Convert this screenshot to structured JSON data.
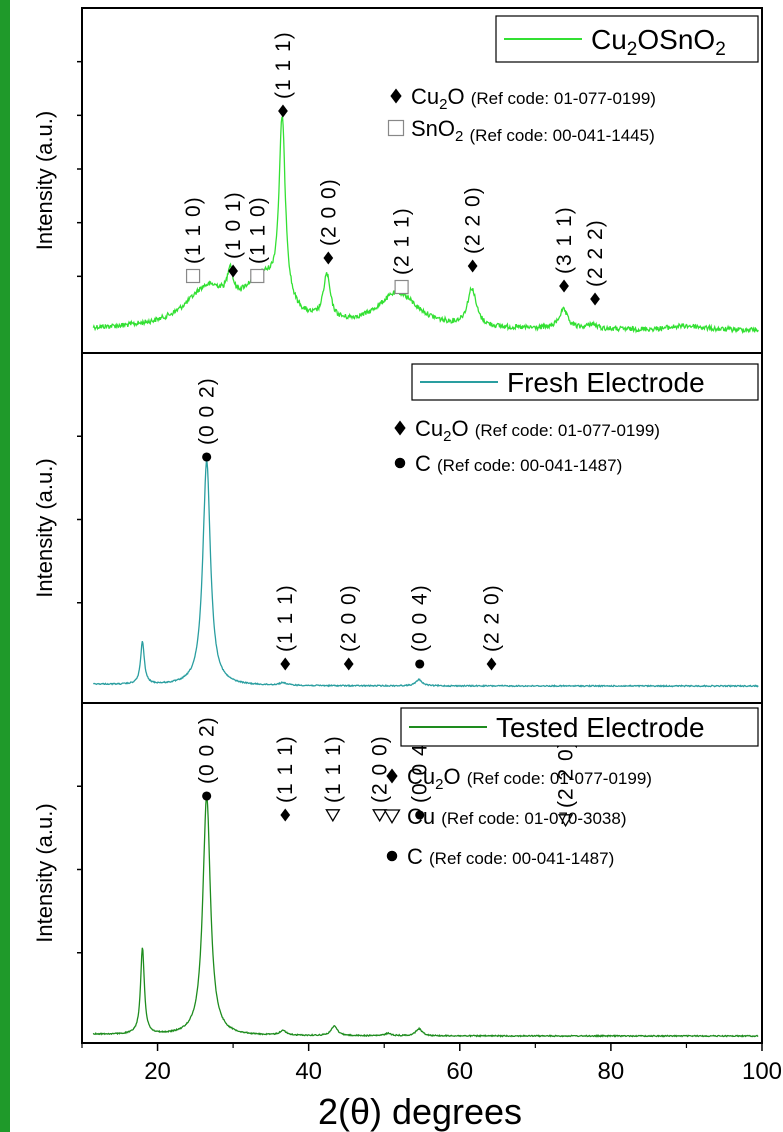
{
  "chart_data": {
    "type": "line",
    "xlabel": "2(θ) degrees",
    "xlim": [
      10,
      100
    ],
    "xticks": [
      20,
      40,
      60,
      80,
      100
    ],
    "ylabel": "Intensity (a.u.)",
    "panels": [
      {
        "legend": {
          "name": "Cu2OSnO2",
          "label_main": "Cu",
          "label_sub": "2",
          "label_rest": "OSnO",
          "label_sub2": "2"
        },
        "color": "#33e033",
        "phases": [
          {
            "symbol": "diamond",
            "name_main": "Cu",
            "name_sub": "2",
            "name_rest": "O",
            "ref": "(Ref code: 01-077-0199)"
          },
          {
            "symbol": "square",
            "name_main": "SnO",
            "name_sub": "2",
            "name_rest": "",
            "ref": "(Ref code: 00-041-1445)"
          }
        ],
        "peaks": [
          {
            "x": 26.6,
            "h": 0.16,
            "w": 3.5
          },
          {
            "x": 29.6,
            "h": 0.12,
            "w": 0.4
          },
          {
            "x": 33.9,
            "h": 0.19,
            "w": 3.0
          },
          {
            "x": 36.5,
            "h": 0.78,
            "w": 0.5
          },
          {
            "x": 42.4,
            "h": 0.19,
            "w": 0.55
          },
          {
            "x": 51.8,
            "h": 0.15,
            "w": 3.2
          },
          {
            "x": 61.6,
            "h": 0.16,
            "w": 0.7
          },
          {
            "x": 73.7,
            "h": 0.08,
            "w": 0.7
          },
          {
            "x": 77.5,
            "h": 0.02,
            "w": 0.7
          }
        ],
        "markers": [
          {
            "x": 24.7,
            "symbol": "square",
            "label": "(1 1 0)"
          },
          {
            "x": 30.0,
            "symbol": "diamond",
            "label": "(1 0 1)"
          },
          {
            "x": 33.2,
            "symbol": "square",
            "label": "(1 1 0)"
          },
          {
            "x": 36.6,
            "symbol": "diamond",
            "label": "(1 1 1)"
          },
          {
            "x": 42.6,
            "symbol": "diamond",
            "label": "(2 0 0)"
          },
          {
            "x": 52.3,
            "symbol": "square",
            "label": "(2 1 1)"
          },
          {
            "x": 61.7,
            "symbol": "diamond",
            "label": "(2 2 0)"
          },
          {
            "x": 73.8,
            "symbol": "diamond",
            "label": "(3 1 1)"
          },
          {
            "x": 77.9,
            "symbol": "diamond",
            "label": "(2 2 2)"
          }
        ]
      },
      {
        "legend": {
          "name": "Fresh Electrode"
        },
        "color": "#2a9ea0",
        "phases": [
          {
            "symbol": "diamond",
            "name_main": "Cu",
            "name_sub": "2",
            "name_rest": "O",
            "ref": "(Ref code: 01-077-0199)"
          },
          {
            "symbol": "circle",
            "name_main": "C",
            "name_sub": "",
            "name_rest": "",
            "ref": "(Ref code: 00-041-1487)"
          }
        ],
        "peaks": [
          {
            "x": 18.0,
            "h": 0.17,
            "w": 0.3
          },
          {
            "x": 26.5,
            "h": 0.9,
            "w": 0.6
          },
          {
            "x": 36.6,
            "h": 0.01,
            "w": 0.6
          },
          {
            "x": 54.6,
            "h": 0.025,
            "w": 0.5
          }
        ],
        "markers": [
          {
            "x": 26.5,
            "symbol": "circle",
            "label": "(0 0 2)"
          },
          {
            "x": 36.9,
            "symbol": "diamond",
            "label": "(1 1 1)"
          },
          {
            "x": 45.3,
            "symbol": "diamond",
            "label": "(2 0 0)"
          },
          {
            "x": 54.7,
            "symbol": "circle",
            "label": "(0 0 4)"
          },
          {
            "x": 64.2,
            "symbol": "diamond",
            "label": "(2 2 0)"
          }
        ]
      },
      {
        "legend": {
          "name": "Tested Electrode"
        },
        "color": "#1e8c1e",
        "phases": [
          {
            "symbol": "diamond",
            "name_main": "Cu",
            "name_sub": "2",
            "name_rest": "O",
            "ref": "(Ref code: 01-077-0199)"
          },
          {
            "symbol": "triangle",
            "name_main": "Cu",
            "name_sub": "",
            "name_rest": "",
            "ref": "(Ref code: 01-070-3038)"
          },
          {
            "symbol": "circle",
            "name_main": "C",
            "name_sub": "",
            "name_rest": "",
            "ref": "(Ref code: 00-041-1487)"
          }
        ],
        "peaks": [
          {
            "x": 18.0,
            "h": 0.36,
            "w": 0.3
          },
          {
            "x": 26.5,
            "h": 1.0,
            "w": 0.6
          },
          {
            "x": 36.6,
            "h": 0.02,
            "w": 0.5
          },
          {
            "x": 43.4,
            "h": 0.04,
            "w": 0.5
          },
          {
            "x": 50.5,
            "h": 0.01,
            "w": 0.5
          },
          {
            "x": 54.6,
            "h": 0.03,
            "w": 0.5
          }
        ],
        "markers": [
          {
            "x": 36.9,
            "symbol": "diamond",
            "label": "(1 1 1)"
          },
          {
            "x": 43.2,
            "symbol": "triangle",
            "label": "(1 1 1)"
          },
          {
            "x": 49.4,
            "symbol": "triangle",
            "label": "(2 0 0)"
          },
          {
            "x": 54.7,
            "symbol": "circle",
            "label": "(0 0 4)"
          },
          {
            "x": 74.0,
            "symbol": "triangle",
            "label": "(2 2 0)"
          },
          {
            "x": 26.5,
            "symbol": "circle",
            "label": "(0 0 2)"
          }
        ]
      }
    ]
  }
}
